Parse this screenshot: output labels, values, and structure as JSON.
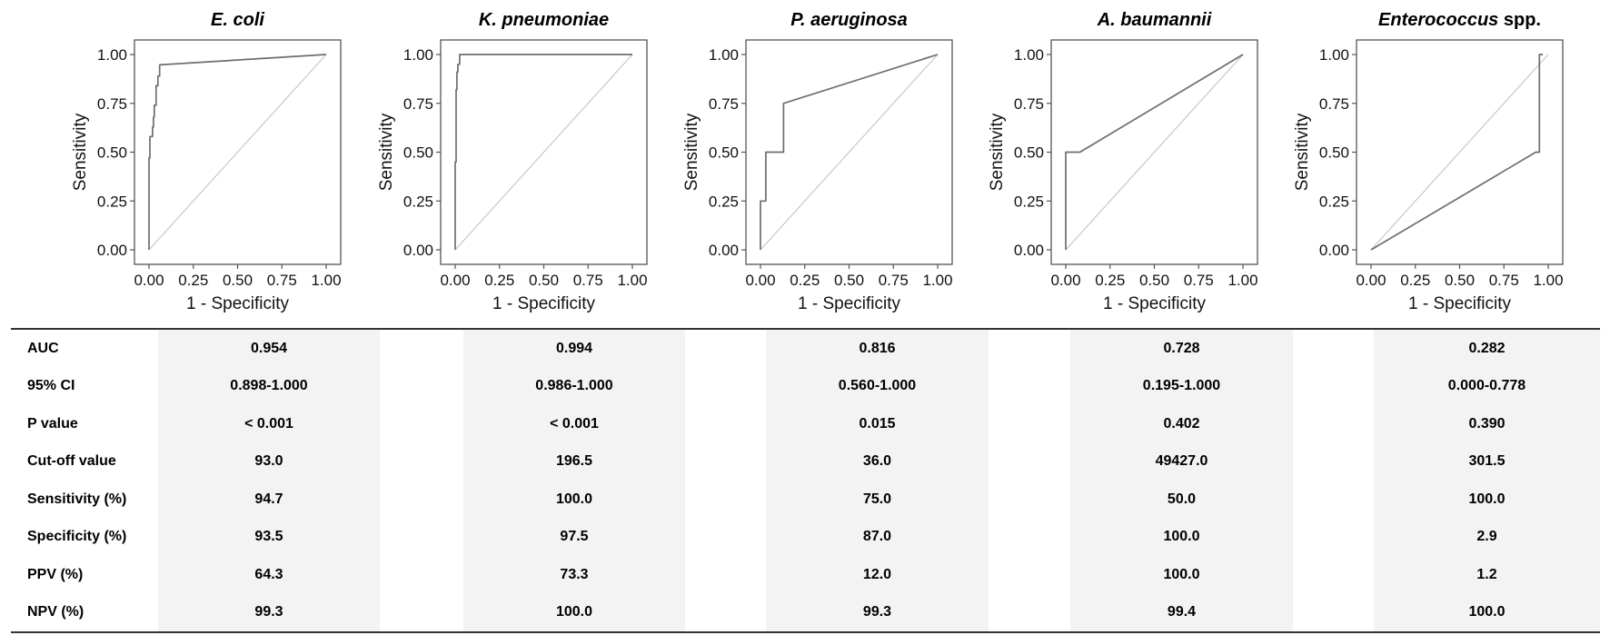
{
  "chart_data": [
    {
      "type": "line",
      "title_parts": [
        {
          "text": "E. coli",
          "italic": true
        }
      ],
      "xlabel": "1 - Specificity",
      "ylabel": "Sensitivity",
      "xlim": [
        0,
        1
      ],
      "ylim": [
        0,
        1
      ],
      "x_ticks": [
        "0.00",
        "0.25",
        "0.50",
        "0.75",
        "1.00"
      ],
      "y_ticks": [
        "0.00",
        "0.25",
        "0.50",
        "0.75",
        "1.00"
      ],
      "reference_line": true,
      "series": [
        {
          "name": "ROC",
          "x": [
            0,
            0,
            0.005,
            0.005,
            0.02,
            0.02,
            0.025,
            0.025,
            0.03,
            0.03,
            0.04,
            0.04,
            0.05,
            0.05,
            0.06,
            0.06,
            1.0
          ],
          "y": [
            0,
            0.47,
            0.47,
            0.58,
            0.58,
            0.63,
            0.63,
            0.68,
            0.68,
            0.74,
            0.74,
            0.84,
            0.84,
            0.89,
            0.89,
            0.947,
            1.0
          ]
        }
      ]
    },
    {
      "type": "line",
      "title_parts": [
        {
          "text": "K. pneumoniae",
          "italic": true
        }
      ],
      "xlabel": "1 - Specificity",
      "ylabel": "Sensitivity",
      "xlim": [
        0,
        1
      ],
      "ylim": [
        0,
        1
      ],
      "x_ticks": [
        "0.00",
        "0.25",
        "0.50",
        "0.75",
        "1.00"
      ],
      "y_ticks": [
        "0.00",
        "0.25",
        "0.50",
        "0.75",
        "1.00"
      ],
      "reference_line": true,
      "series": [
        {
          "name": "ROC",
          "x": [
            0,
            0,
            0.005,
            0.005,
            0.01,
            0.01,
            0.015,
            0.015,
            0.025,
            0.025,
            1.0
          ],
          "y": [
            0,
            0.45,
            0.45,
            0.82,
            0.82,
            0.91,
            0.91,
            0.95,
            0.95,
            1.0,
            1.0
          ]
        }
      ]
    },
    {
      "type": "line",
      "title_parts": [
        {
          "text": "P. aeruginosa",
          "italic": true
        }
      ],
      "xlabel": "1 - Specificity",
      "ylabel": "Sensitivity",
      "xlim": [
        0,
        1
      ],
      "ylim": [
        0,
        1
      ],
      "x_ticks": [
        "0.00",
        "0.25",
        "0.50",
        "0.75",
        "1.00"
      ],
      "y_ticks": [
        "0.00",
        "0.25",
        "0.50",
        "0.75",
        "1.00"
      ],
      "reference_line": true,
      "series": [
        {
          "name": "ROC",
          "x": [
            0,
            0,
            0.03,
            0.03,
            0.13,
            0.13,
            1.0
          ],
          "y": [
            0,
            0.25,
            0.25,
            0.5,
            0.5,
            0.75,
            1.0
          ]
        }
      ]
    },
    {
      "type": "line",
      "title_parts": [
        {
          "text": "A. baumannii",
          "italic": true
        }
      ],
      "xlabel": "1 - Specificity",
      "ylabel": "Sensitivity",
      "xlim": [
        0,
        1
      ],
      "ylim": [
        0,
        1
      ],
      "x_ticks": [
        "0.00",
        "0.25",
        "0.50",
        "0.75",
        "1.00"
      ],
      "y_ticks": [
        "0.00",
        "0.25",
        "0.50",
        "0.75",
        "1.00"
      ],
      "reference_line": true,
      "series": [
        {
          "name": "ROC",
          "x": [
            0,
            0,
            0.08,
            1.0
          ],
          "y": [
            0,
            0.5,
            0.5,
            1.0
          ]
        }
      ]
    },
    {
      "type": "line",
      "title_parts": [
        {
          "text": "Enterococcus",
          "italic": true
        },
        {
          "text": " spp.",
          "italic": false
        }
      ],
      "xlabel": "1 - Specificity",
      "ylabel": "Sensitivity",
      "xlim": [
        0,
        1
      ],
      "ylim": [
        0,
        1
      ],
      "x_ticks": [
        "0.00",
        "0.25",
        "0.50",
        "0.75",
        "1.00"
      ],
      "y_ticks": [
        "0.00",
        "0.25",
        "0.50",
        "0.75",
        "1.00"
      ],
      "reference_line": true,
      "series": [
        {
          "name": "ROC",
          "x": [
            0,
            0.93,
            0.95,
            0.95,
            0.97,
            0.97
          ],
          "y": [
            0,
            0.5,
            0.5,
            1.0,
            1.0,
            1.0
          ]
        }
      ]
    }
  ],
  "table": {
    "rows": [
      {
        "label": "AUC",
        "values": [
          "0.954",
          "0.994",
          "0.816",
          "0.728",
          "0.282"
        ]
      },
      {
        "label": "95% CI",
        "values": [
          "0.898-1.000",
          "0.986-1.000",
          "0.560-1.000",
          "0.195-1.000",
          "0.000-0.778"
        ]
      },
      {
        "label": "P value",
        "values": [
          "< 0.001",
          "< 0.001",
          "0.015",
          "0.402",
          "0.390"
        ]
      },
      {
        "label": "Cut-off value",
        "values": [
          "93.0",
          "196.5",
          "36.0",
          "49427.0",
          "301.5"
        ]
      },
      {
        "label": "Sensitivity (%)",
        "values": [
          "94.7",
          "100.0",
          "75.0",
          "50.0",
          "100.0"
        ]
      },
      {
        "label": "Specificity (%)",
        "values": [
          "93.5",
          "97.5",
          "87.0",
          "100.0",
          "2.9"
        ]
      },
      {
        "label": "PPV (%)",
        "values": [
          "64.3",
          "73.3",
          "12.0",
          "100.0",
          "1.2"
        ]
      },
      {
        "label": "NPV (%)",
        "values": [
          "99.3",
          "100.0",
          "99.3",
          "99.4",
          "100.0"
        ]
      }
    ]
  }
}
